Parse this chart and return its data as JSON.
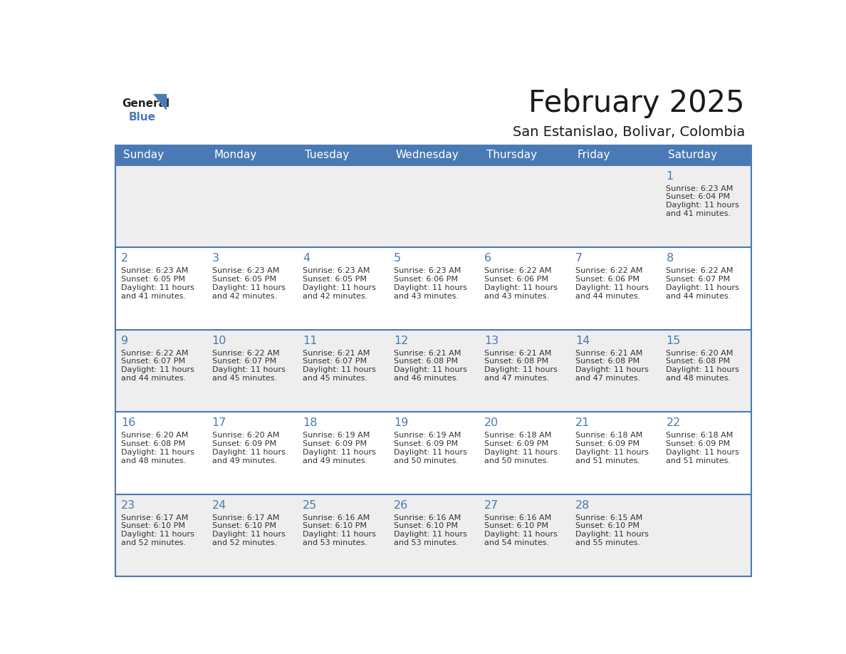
{
  "title": "February 2025",
  "subtitle": "San Estanislao, Bolivar, Colombia",
  "header_bg_color": "#4a7ab5",
  "header_text_color": "#FFFFFF",
  "border_color": "#4a7ab5",
  "title_color": "#1a1a1a",
  "subtitle_color": "#1a1a1a",
  "day_number_color": "#4a7ab5",
  "cell_text_color": "#333333",
  "odd_row_color": "#eeeeee",
  "even_row_color": "#ffffff",
  "days_of_week": [
    "Sunday",
    "Monday",
    "Tuesday",
    "Wednesday",
    "Thursday",
    "Friday",
    "Saturday"
  ],
  "weeks": [
    [
      {
        "day": null
      },
      {
        "day": null
      },
      {
        "day": null
      },
      {
        "day": null
      },
      {
        "day": null
      },
      {
        "day": null
      },
      {
        "day": 1,
        "sunrise": "6:23 AM",
        "sunset": "6:04 PM",
        "daylight_line1": "Daylight: 11 hours",
        "daylight_line2": "and 41 minutes."
      }
    ],
    [
      {
        "day": 2,
        "sunrise": "6:23 AM",
        "sunset": "6:05 PM",
        "daylight_line1": "Daylight: 11 hours",
        "daylight_line2": "and 41 minutes."
      },
      {
        "day": 3,
        "sunrise": "6:23 AM",
        "sunset": "6:05 PM",
        "daylight_line1": "Daylight: 11 hours",
        "daylight_line2": "and 42 minutes."
      },
      {
        "day": 4,
        "sunrise": "6:23 AM",
        "sunset": "6:05 PM",
        "daylight_line1": "Daylight: 11 hours",
        "daylight_line2": "and 42 minutes."
      },
      {
        "day": 5,
        "sunrise": "6:23 AM",
        "sunset": "6:06 PM",
        "daylight_line1": "Daylight: 11 hours",
        "daylight_line2": "and 43 minutes."
      },
      {
        "day": 6,
        "sunrise": "6:22 AM",
        "sunset": "6:06 PM",
        "daylight_line1": "Daylight: 11 hours",
        "daylight_line2": "and 43 minutes."
      },
      {
        "day": 7,
        "sunrise": "6:22 AM",
        "sunset": "6:06 PM",
        "daylight_line1": "Daylight: 11 hours",
        "daylight_line2": "and 44 minutes."
      },
      {
        "day": 8,
        "sunrise": "6:22 AM",
        "sunset": "6:07 PM",
        "daylight_line1": "Daylight: 11 hours",
        "daylight_line2": "and 44 minutes."
      }
    ],
    [
      {
        "day": 9,
        "sunrise": "6:22 AM",
        "sunset": "6:07 PM",
        "daylight_line1": "Daylight: 11 hours",
        "daylight_line2": "and 44 minutes."
      },
      {
        "day": 10,
        "sunrise": "6:22 AM",
        "sunset": "6:07 PM",
        "daylight_line1": "Daylight: 11 hours",
        "daylight_line2": "and 45 minutes."
      },
      {
        "day": 11,
        "sunrise": "6:21 AM",
        "sunset": "6:07 PM",
        "daylight_line1": "Daylight: 11 hours",
        "daylight_line2": "and 45 minutes."
      },
      {
        "day": 12,
        "sunrise": "6:21 AM",
        "sunset": "6:08 PM",
        "daylight_line1": "Daylight: 11 hours",
        "daylight_line2": "and 46 minutes."
      },
      {
        "day": 13,
        "sunrise": "6:21 AM",
        "sunset": "6:08 PM",
        "daylight_line1": "Daylight: 11 hours",
        "daylight_line2": "and 47 minutes."
      },
      {
        "day": 14,
        "sunrise": "6:21 AM",
        "sunset": "6:08 PM",
        "daylight_line1": "Daylight: 11 hours",
        "daylight_line2": "and 47 minutes."
      },
      {
        "day": 15,
        "sunrise": "6:20 AM",
        "sunset": "6:08 PM",
        "daylight_line1": "Daylight: 11 hours",
        "daylight_line2": "and 48 minutes."
      }
    ],
    [
      {
        "day": 16,
        "sunrise": "6:20 AM",
        "sunset": "6:08 PM",
        "daylight_line1": "Daylight: 11 hours",
        "daylight_line2": "and 48 minutes."
      },
      {
        "day": 17,
        "sunrise": "6:20 AM",
        "sunset": "6:09 PM",
        "daylight_line1": "Daylight: 11 hours",
        "daylight_line2": "and 49 minutes."
      },
      {
        "day": 18,
        "sunrise": "6:19 AM",
        "sunset": "6:09 PM",
        "daylight_line1": "Daylight: 11 hours",
        "daylight_line2": "and 49 minutes."
      },
      {
        "day": 19,
        "sunrise": "6:19 AM",
        "sunset": "6:09 PM",
        "daylight_line1": "Daylight: 11 hours",
        "daylight_line2": "and 50 minutes."
      },
      {
        "day": 20,
        "sunrise": "6:18 AM",
        "sunset": "6:09 PM",
        "daylight_line1": "Daylight: 11 hours",
        "daylight_line2": "and 50 minutes."
      },
      {
        "day": 21,
        "sunrise": "6:18 AM",
        "sunset": "6:09 PM",
        "daylight_line1": "Daylight: 11 hours",
        "daylight_line2": "and 51 minutes."
      },
      {
        "day": 22,
        "sunrise": "6:18 AM",
        "sunset": "6:09 PM",
        "daylight_line1": "Daylight: 11 hours",
        "daylight_line2": "and 51 minutes."
      }
    ],
    [
      {
        "day": 23,
        "sunrise": "6:17 AM",
        "sunset": "6:10 PM",
        "daylight_line1": "Daylight: 11 hours",
        "daylight_line2": "and 52 minutes."
      },
      {
        "day": 24,
        "sunrise": "6:17 AM",
        "sunset": "6:10 PM",
        "daylight_line1": "Daylight: 11 hours",
        "daylight_line2": "and 52 minutes."
      },
      {
        "day": 25,
        "sunrise": "6:16 AM",
        "sunset": "6:10 PM",
        "daylight_line1": "Daylight: 11 hours",
        "daylight_line2": "and 53 minutes."
      },
      {
        "day": 26,
        "sunrise": "6:16 AM",
        "sunset": "6:10 PM",
        "daylight_line1": "Daylight: 11 hours",
        "daylight_line2": "and 53 minutes."
      },
      {
        "day": 27,
        "sunrise": "6:16 AM",
        "sunset": "6:10 PM",
        "daylight_line1": "Daylight: 11 hours",
        "daylight_line2": "and 54 minutes."
      },
      {
        "day": 28,
        "sunrise": "6:15 AM",
        "sunset": "6:10 PM",
        "daylight_line1": "Daylight: 11 hours",
        "daylight_line2": "and 55 minutes."
      },
      {
        "day": null
      }
    ]
  ]
}
